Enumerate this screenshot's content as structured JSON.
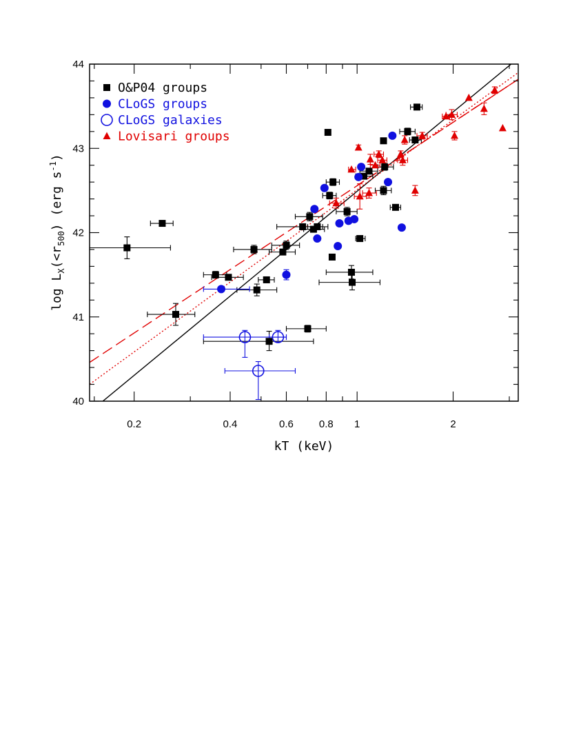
{
  "chart_data": {
    "type": "scatter",
    "xlabel": "kT (keV)",
    "ylabel_parts": {
      "base": "log L",
      "sub1": "X",
      "mid": "(<r",
      "sub2": "500",
      "mid2": ") (erg s",
      "sup": "-1",
      "end": ")"
    },
    "xscale": "log",
    "xlim": [
      0.145,
      3.2
    ],
    "ylim": [
      40,
      44
    ],
    "x_ticks": [
      0.2,
      0.4,
      0.6,
      0.8,
      1,
      2
    ],
    "x_tick_labels": [
      "0.2",
      "0.4",
      "0.6",
      "0.8",
      "1",
      "2"
    ],
    "y_ticks": [
      40,
      41,
      42,
      43,
      44
    ],
    "y_tick_labels": [
      "40",
      "41",
      "42",
      "43",
      "44"
    ],
    "legend_position": "top-left",
    "colors": {
      "black": "#000000",
      "blue": "#1010e0",
      "red": "#e00000"
    },
    "series": [
      {
        "name": "O&P04 groups",
        "marker": "filled-square",
        "color": "#000000",
        "points": [
          {
            "x": 0.19,
            "y": 41.82,
            "xlo": 0.145,
            "xhi": 0.26,
            "ylo": 41.69,
            "yhi": 41.95
          },
          {
            "x": 0.245,
            "y": 42.11,
            "xlo": 0.225,
            "xhi": 0.265
          },
          {
            "x": 0.27,
            "y": 41.03,
            "xlo": 0.22,
            "xhi": 0.31,
            "ylo": 40.9,
            "yhi": 41.16
          },
          {
            "x": 0.36,
            "y": 41.5,
            "xlo": 0.33,
            "xhi": 0.39,
            "ylo": 41.46,
            "yhi": 41.54
          },
          {
            "x": 0.395,
            "y": 41.47,
            "xlo": 0.35,
            "xhi": 0.44
          },
          {
            "x": 0.475,
            "y": 41.8,
            "xlo": 0.41,
            "xhi": 0.54,
            "ylo": 41.75,
            "yhi": 41.85
          },
          {
            "x": 0.485,
            "y": 41.32,
            "xlo": 0.42,
            "xhi": 0.56,
            "ylo": 41.25,
            "yhi": 41.39
          },
          {
            "x": 0.52,
            "y": 41.44,
            "xlo": 0.49,
            "xhi": 0.55
          },
          {
            "x": 0.53,
            "y": 40.71,
            "xlo": 0.33,
            "xhi": 0.73,
            "ylo": 40.6,
            "yhi": 40.83
          },
          {
            "x": 0.585,
            "y": 41.77,
            "xlo": 0.53,
            "xhi": 0.64
          },
          {
            "x": 0.6,
            "y": 41.85,
            "xlo": 0.54,
            "xhi": 0.66,
            "ylo": 41.8,
            "yhi": 41.9
          },
          {
            "x": 0.675,
            "y": 42.07,
            "xlo": 0.56,
            "xhi": 0.78
          },
          {
            "x": 0.7,
            "y": 40.86,
            "xlo": 0.6,
            "xhi": 0.8,
            "ylo": 40.82,
            "yhi": 40.9
          },
          {
            "x": 0.71,
            "y": 42.19,
            "xlo": 0.64,
            "xhi": 0.78,
            "ylo": 42.14,
            "yhi": 42.24
          },
          {
            "x": 0.73,
            "y": 42.04,
            "xlo": 0.68,
            "xhi": 0.79
          },
          {
            "x": 0.75,
            "y": 42.07,
            "xlo": 0.7,
            "xhi": 0.81
          },
          {
            "x": 0.81,
            "y": 43.19,
            "xlo": 0.8,
            "xhi": 0.82
          },
          {
            "x": 0.82,
            "y": 42.44,
            "xlo": 0.78,
            "xhi": 0.86,
            "ylo": 42.4,
            "yhi": 42.48
          },
          {
            "x": 0.835,
            "y": 41.71,
            "xlo": 0.82,
            "xhi": 0.85
          },
          {
            "x": 0.84,
            "y": 42.6,
            "xlo": 0.8,
            "xhi": 0.88,
            "ylo": 42.56,
            "yhi": 42.64
          },
          {
            "x": 0.93,
            "y": 42.25,
            "xlo": 0.86,
            "xhi": 1.0,
            "ylo": 42.2,
            "yhi": 42.3
          },
          {
            "x": 0.96,
            "y": 41.53,
            "xlo": 0.8,
            "xhi": 1.12,
            "ylo": 41.45,
            "yhi": 41.61
          },
          {
            "x": 0.965,
            "y": 41.41,
            "xlo": 0.76,
            "xhi": 1.18,
            "ylo": 41.32,
            "yhi": 41.5
          },
          {
            "x": 1.02,
            "y": 41.93,
            "xlo": 0.99,
            "xhi": 1.06
          },
          {
            "x": 1.05,
            "y": 42.67,
            "xlo": 0.99,
            "xhi": 1.12
          },
          {
            "x": 1.09,
            "y": 42.73,
            "xlo": 1.02,
            "xhi": 1.16
          },
          {
            "x": 1.21,
            "y": 42.5,
            "xlo": 1.14,
            "xhi": 1.28,
            "ylo": 42.45,
            "yhi": 42.55
          },
          {
            "x": 1.21,
            "y": 43.09,
            "xlo": 1.2,
            "xhi": 1.23
          },
          {
            "x": 1.22,
            "y": 42.78,
            "xlo": 1.16,
            "xhi": 1.3,
            "ylo": 42.74,
            "yhi": 42.82
          },
          {
            "x": 1.32,
            "y": 42.3,
            "xlo": 1.27,
            "xhi": 1.37
          },
          {
            "x": 1.44,
            "y": 43.2,
            "xlo": 1.36,
            "xhi": 1.52,
            "ylo": 43.16,
            "yhi": 43.24
          },
          {
            "x": 1.52,
            "y": 43.1,
            "xlo": 1.46,
            "xhi": 1.59
          },
          {
            "x": 1.54,
            "y": 43.49,
            "xlo": 1.47,
            "xhi": 1.6
          }
        ]
      },
      {
        "name": "CLoGS groups",
        "marker": "filled-circle",
        "color": "#1010e0",
        "points": [
          {
            "x": 0.375,
            "y": 41.33,
            "xlo": 0.33,
            "xhi": 0.46
          },
          {
            "x": 0.6,
            "y": 41.5,
            "ylo": 41.44,
            "yhi": 41.56
          },
          {
            "x": 0.735,
            "y": 42.28
          },
          {
            "x": 0.75,
            "y": 41.93
          },
          {
            "x": 0.79,
            "y": 42.53
          },
          {
            "x": 0.87,
            "y": 41.84
          },
          {
            "x": 0.88,
            "y": 42.11
          },
          {
            "x": 0.94,
            "y": 42.14
          },
          {
            "x": 0.98,
            "y": 42.16
          },
          {
            "x": 1.01,
            "y": 42.66
          },
          {
            "x": 1.03,
            "y": 42.78
          },
          {
            "x": 1.25,
            "y": 42.6
          },
          {
            "x": 1.29,
            "y": 43.15
          },
          {
            "x": 1.38,
            "y": 42.06
          }
        ]
      },
      {
        "name": "CLoGS galaxies",
        "marker": "open-circle",
        "color": "#1010e0",
        "points": [
          {
            "x": 0.445,
            "y": 40.76,
            "xlo": 0.33,
            "xhi": 0.6,
            "ylo": 40.52,
            "yhi": 40.84
          },
          {
            "x": 0.49,
            "y": 40.36,
            "xlo": 0.385,
            "xhi": 0.64,
            "ylo": 40.02,
            "yhi": 40.47
          },
          {
            "x": 0.565,
            "y": 40.76,
            "xlo": 0.53,
            "xhi": 0.6,
            "ylo": 40.7,
            "yhi": 40.84
          }
        ]
      },
      {
        "name": "Lovisari groups",
        "marker": "filled-triangle",
        "color": "#e00000",
        "points": [
          {
            "x": 0.86,
            "y": 42.35,
            "xlo": 0.82,
            "xhi": 0.91,
            "ylo": 42.29,
            "yhi": 42.41
          },
          {
            "x": 0.96,
            "y": 42.75,
            "xlo": 0.94,
            "xhi": 0.99
          },
          {
            "x": 1.01,
            "y": 43.01,
            "ylo": 42.98,
            "yhi": 43.04
          },
          {
            "x": 1.02,
            "y": 42.43,
            "xlo": 0.98,
            "xhi": 1.07,
            "ylo": 42.28,
            "yhi": 42.58
          },
          {
            "x": 1.09,
            "y": 42.47,
            "xlo": 1.04,
            "xhi": 1.15,
            "ylo": 42.41,
            "yhi": 42.53
          },
          {
            "x": 1.1,
            "y": 42.87,
            "ylo": 42.81,
            "yhi": 42.93
          },
          {
            "x": 1.14,
            "y": 42.8,
            "xlo": 1.1,
            "xhi": 1.18
          },
          {
            "x": 1.17,
            "y": 42.93,
            "xlo": 1.13,
            "xhi": 1.21,
            "ylo": 42.89,
            "yhi": 42.97
          },
          {
            "x": 1.2,
            "y": 42.86,
            "xlo": 1.16,
            "xhi": 1.24
          },
          {
            "x": 1.37,
            "y": 42.93,
            "ylo": 42.89,
            "yhi": 42.97
          },
          {
            "x": 1.39,
            "y": 42.86,
            "xlo": 1.34,
            "xhi": 1.44,
            "ylo": 42.8,
            "yhi": 42.92
          },
          {
            "x": 1.41,
            "y": 43.1,
            "ylo": 43.05,
            "yhi": 43.15
          },
          {
            "x": 1.52,
            "y": 42.5,
            "ylo": 42.44,
            "yhi": 42.56
          },
          {
            "x": 1.6,
            "y": 43.15,
            "xlo": 1.54,
            "xhi": 1.66,
            "ylo": 43.11,
            "yhi": 43.19
          },
          {
            "x": 1.9,
            "y": 43.38,
            "xlo": 1.85,
            "xhi": 1.95
          },
          {
            "x": 1.98,
            "y": 43.4,
            "xlo": 1.9,
            "xhi": 2.06,
            "ylo": 43.34,
            "yhi": 43.46
          },
          {
            "x": 2.02,
            "y": 43.15,
            "ylo": 43.1,
            "yhi": 43.2
          },
          {
            "x": 2.24,
            "y": 43.6
          },
          {
            "x": 2.5,
            "y": 43.47,
            "ylo": 43.4,
            "yhi": 43.54
          },
          {
            "x": 2.7,
            "y": 43.69,
            "ylo": 43.65,
            "yhi": 43.73
          },
          {
            "x": 2.86,
            "y": 43.24
          }
        ]
      }
    ],
    "fit_lines": [
      {
        "style": "solid",
        "color": "#000000",
        "x1": 0.145,
        "y1": 39.87,
        "x2": 3.2,
        "y2": 44.07
      },
      {
        "style": "long-dash",
        "color": "#e00000",
        "x1": 0.145,
        "y1": 40.46,
        "x2": 3.2,
        "y2": 43.82
      },
      {
        "style": "dotted",
        "color": "#e00000",
        "x1": 0.145,
        "y1": 40.2,
        "x2": 3.2,
        "y2": 43.9
      },
      {
        "style": "dash-dot",
        "color": "#e00000",
        "x1": 1.0,
        "y1": 42.56,
        "x2": 3.2,
        "y2": 43.82
      }
    ]
  }
}
